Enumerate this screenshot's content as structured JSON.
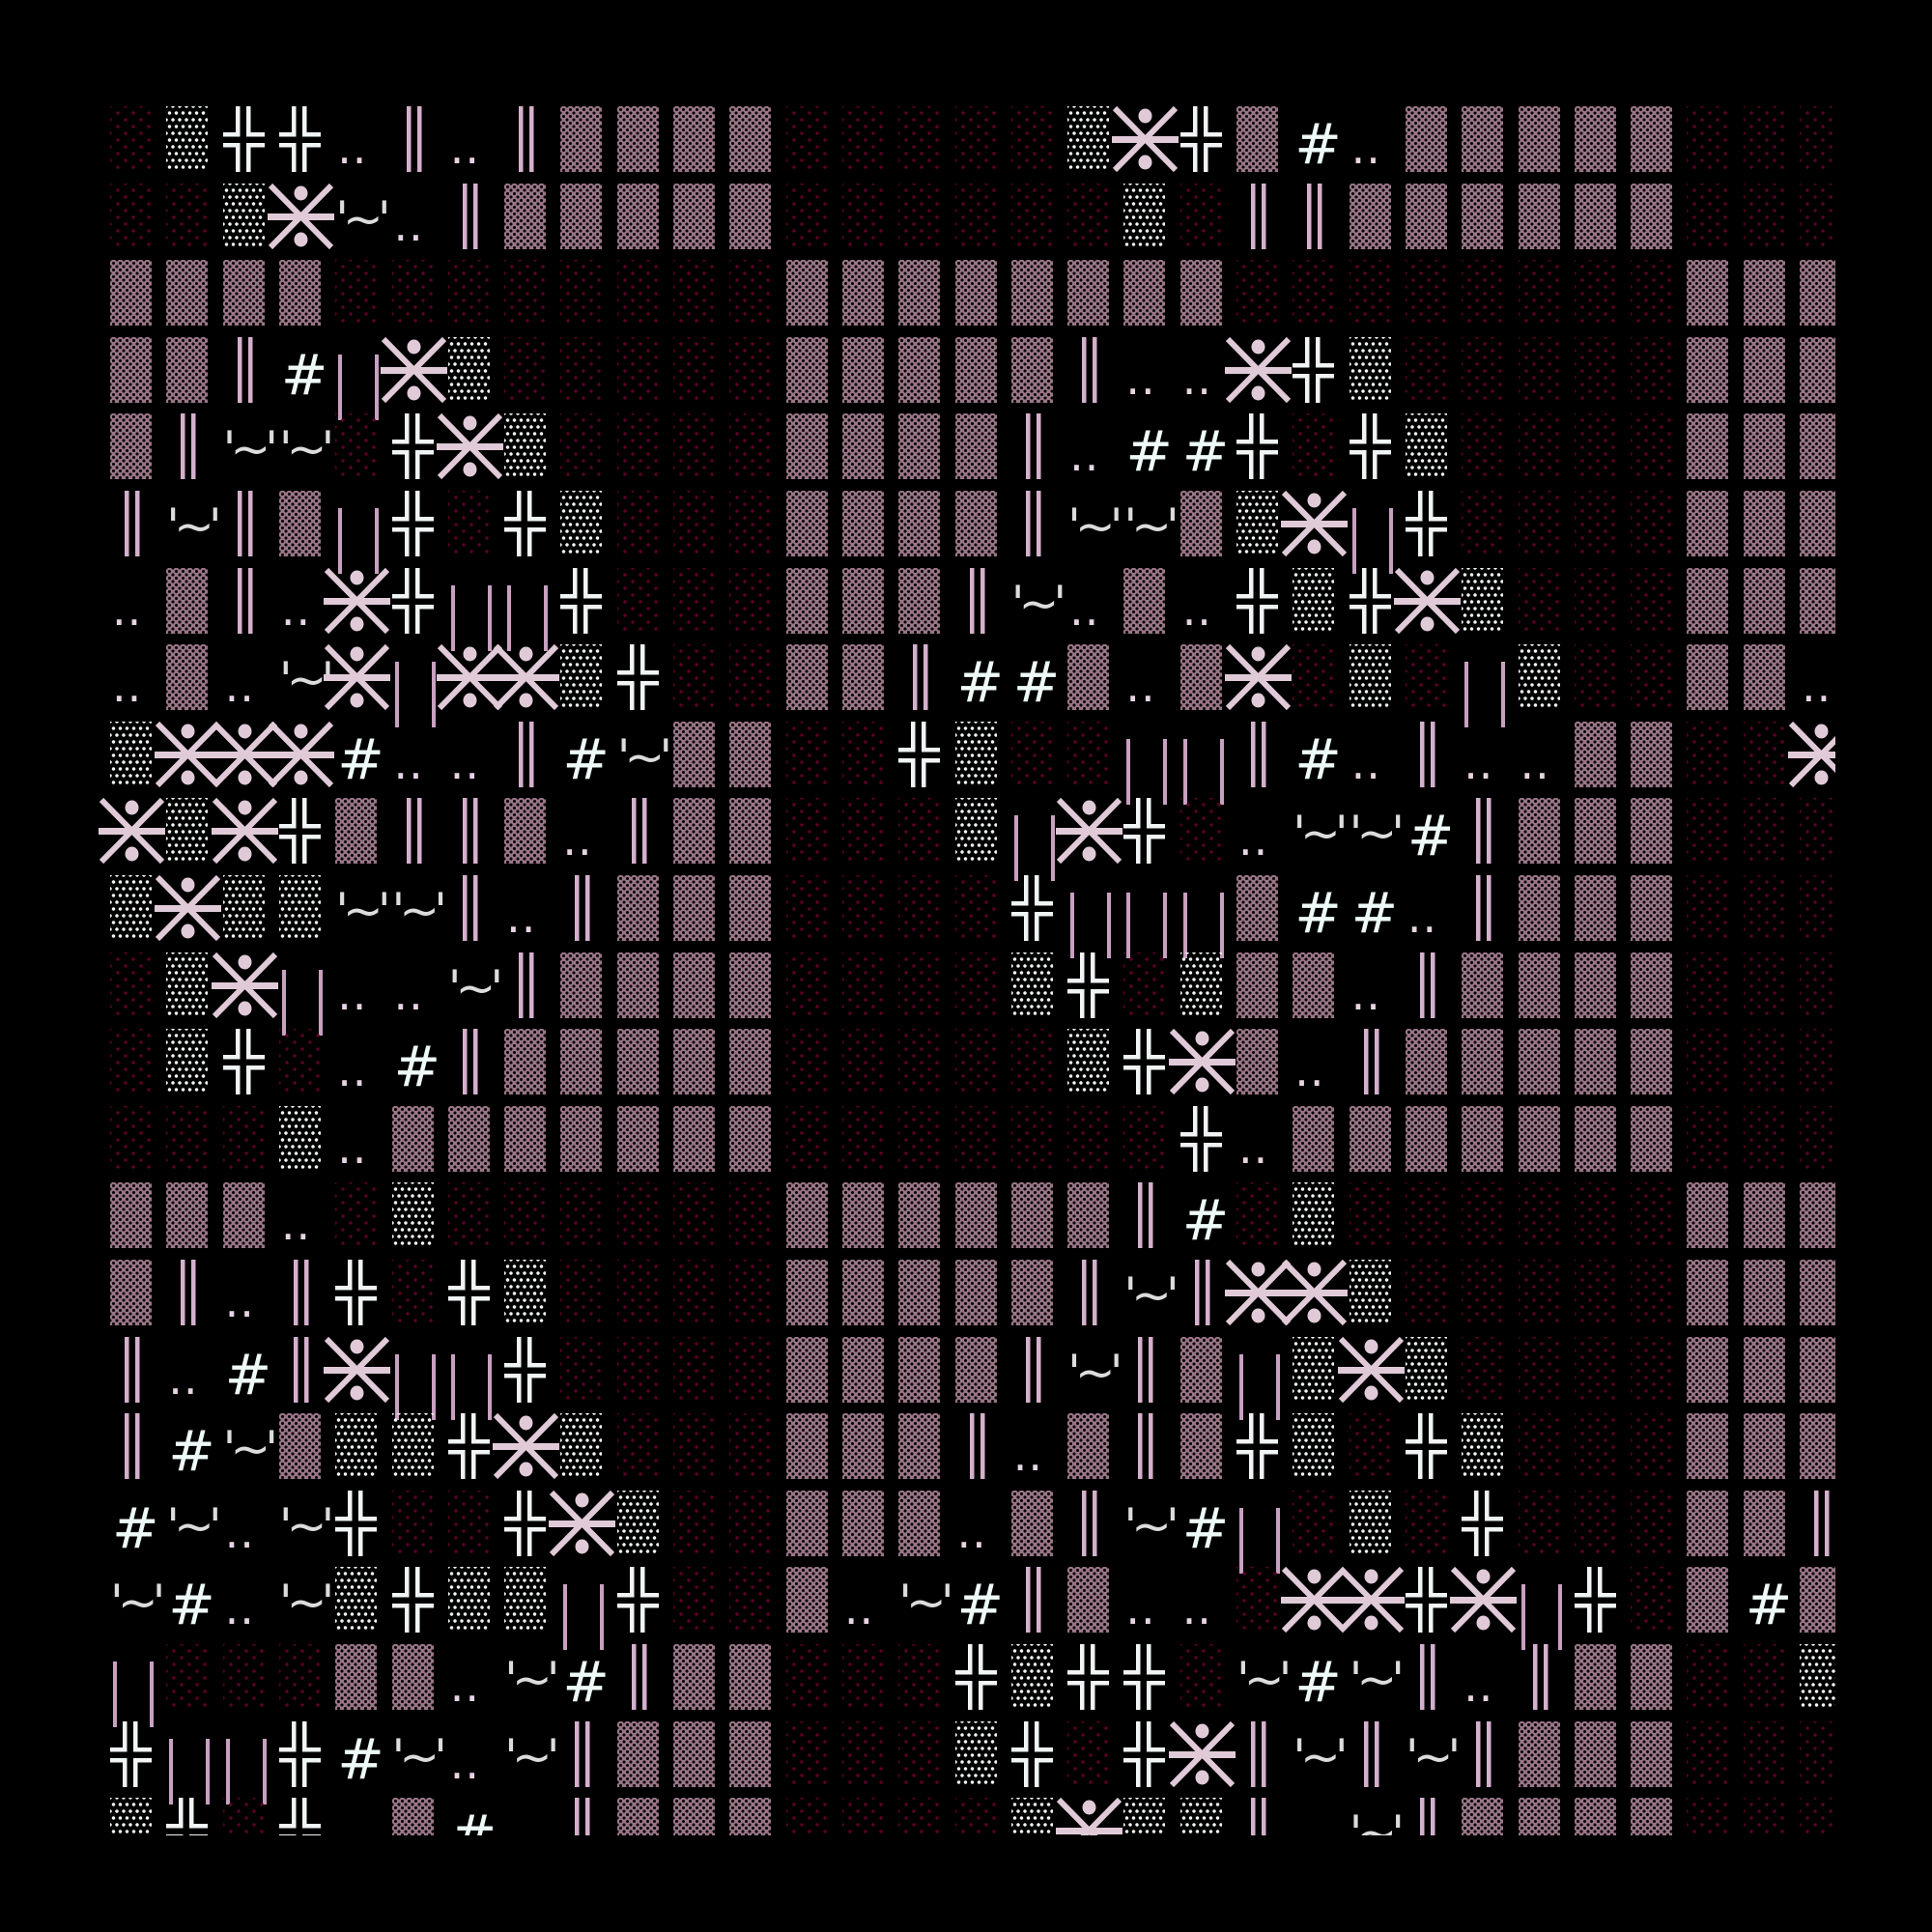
{
  "colors": {
    "background": "#000000",
    "light_shade": "#5c0026",
    "medium_shade": "#9a7686",
    "dense_dots": "#f2f6f6",
    "double_bar": "#d4b0cc",
    "asterism": "#e0cad8",
    "text": "#eefaf8"
  },
  "legend": {
    "D": {
      "glyph": "░",
      "icon": "light-shade-icon"
    },
    "M": {
      "glyph": "▒",
      "icon": "medium-shade-icon"
    },
    "W": {
      "glyph": "▓",
      "icon": "dense-dots-icon"
    },
    "+": {
      "glyph": "╬",
      "icon": "double-cross-icon"
    },
    "=": {
      "glyph": "‖",
      "icon": "double-bar-icon"
    },
    "|": {
      "glyph": "¦",
      "icon": "split-bar-icon"
    },
    "X": {
      "glyph": "⋇",
      "icon": "asterism-icon"
    },
    "#": {
      "glyph": "#",
      "icon": "hash-text"
    },
    ".": {
      "glyph": "..",
      "icon": "dots-text"
    },
    "~": {
      "glyph": "'~'",
      "icon": "tilde-text"
    },
    "_": {
      "glyph": " ",
      "icon": "blank"
    }
  },
  "grid": [
    "DW++.=.=MMMMDDDDDWX+M#.MMMMMDDD",
    "DDWX~.=MMMMMDDDDDDWD==MMMMMMDDD",
    "MMMMDDDDDDDDMMMMMMMMDDDDDDDDMMM",
    "MM=#|XWDDDDDMMMMM=..X+WDDDDDMMM",
    "M=~~D+XWDDDDMMMM=.##+D+WDDDDMMM",
    "=~=M|+D+WDDDMMMM=~~MWX|+DDDDMMM",
    ".M=.X+||+DDDMMM=~.M.+W+XWDDDMMM",
    ".M.~X|XXW+DDMM=##M.MXDWD|WDDMM.",
    "WXXX#..=#~MMDD+WDD||=#.=..MMDDX",
    "XWX+M==M.=MMDDDW|X+D.~~#=MMMDDD",
    "WXWW~~=.=MMMDDDD+|||M##.=MMMDDD",
    "DWX|..~=MMMMDDDDW+DWMM.=MMMMDDD",
    "DW+D.#=MMMMMDDDDDW+XM.=MMMMMDDD",
    "DDDW.MMMMMMMDDDDDDD+.MMMMMMMDDD",
    "MMM.DWDDDDDDMMMMMM=#DWDDDDDDMMM",
    "M=.=+D+WDDDDMMMMM=~=XXWDDDDDMMM",
    "=.#=X||+DDDDMMMM=~=M|WXWDDDDMMM",
    "=#~MWW+XWDDDMMM=.M=M+WD+WDDDMMM",
    "#~.~+DD+XWDDMMM.M=~#|DWD+DDDMM=",
    "~#.~W+WW|+DDM.~#=M..DXX+X|+DM#M",
    "|DDDMM.~#=MMDDD+W++D~#~=.=MMDDW",
    "+||+#~.~=MMMDDDW+D+X=~=~=MMMDDD",
    "W+D+_M#_=MMMDDDDWXWW=_~=MMMMDDD"
  ]
}
